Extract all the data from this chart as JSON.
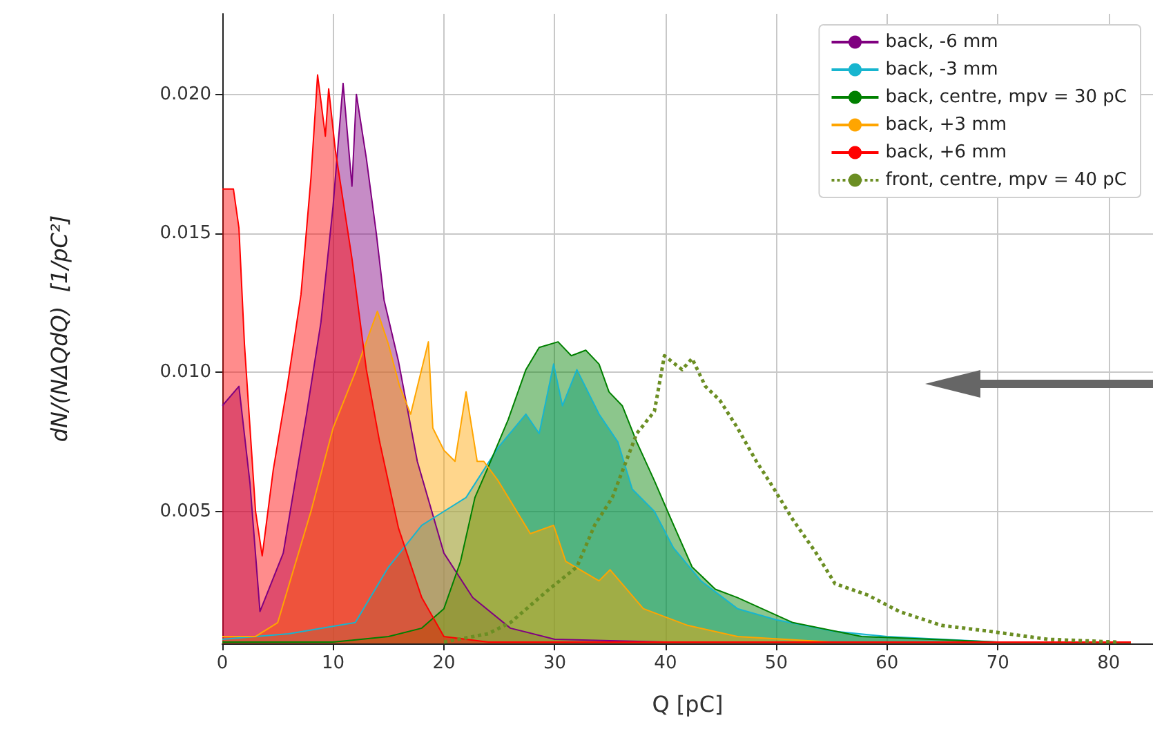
{
  "chart_data": {
    "type": "area",
    "xlabel": "Q [pC]",
    "ylabel": "dN/(NΔQdQ)  [1/pC²]",
    "xlim": [
      0,
      84
    ],
    "xticks": [
      0,
      10,
      20,
      30,
      40,
      50,
      60,
      70,
      80
    ],
    "ylim": [
      0.00025,
      0.0229
    ],
    "yticks": [
      {
        "value": 0.005,
        "label": "0.005"
      },
      {
        "value": 0.01,
        "label": "0.010"
      },
      {
        "value": 0.015,
        "label": "0.015"
      },
      {
        "value": 0.02,
        "label": "0.020"
      }
    ],
    "grid": true,
    "legend": "top right",
    "series": [
      {
        "name": "back, -6 mm",
        "color": "#800080",
        "x": [
          0,
          1.5,
          2.5,
          3.4,
          4.5,
          5.5,
          7.6,
          8.9,
          10,
          10.9,
          11.7,
          12.1,
          13,
          13.9,
          14.6,
          15.9,
          17.6,
          20,
          22.6,
          26,
          30,
          40,
          50,
          60,
          82
        ],
        "values": [
          0.0088,
          0.0095,
          0.006,
          0.0014,
          0.0025,
          0.0035,
          0.0085,
          0.0118,
          0.016,
          0.0204,
          0.0167,
          0.02,
          0.0177,
          0.015,
          0.0126,
          0.0104,
          0.0068,
          0.0035,
          0.0019,
          0.0008,
          0.0004,
          0.0003,
          0.0003,
          0.0003,
          0.0003
        ]
      },
      {
        "name": "back, -3 mm",
        "color": "#17b5cf",
        "x": [
          0,
          6,
          12,
          15,
          18,
          20,
          22,
          24.9,
          27.4,
          28.6,
          29.9,
          30.7,
          32,
          34,
          35.7,
          37,
          39,
          40.7,
          43.2,
          46.5,
          50,
          55,
          60,
          65,
          70,
          82
        ],
        "values": [
          0.0004,
          0.0006,
          0.001,
          0.003,
          0.0045,
          0.005,
          0.0055,
          0.0073,
          0.0085,
          0.0078,
          0.0103,
          0.0088,
          0.0101,
          0.0085,
          0.0075,
          0.0058,
          0.005,
          0.0037,
          0.0025,
          0.0015,
          0.0011,
          0.0007,
          0.0005,
          0.0004,
          0.0003,
          0.0003
        ]
      },
      {
        "name": "back, centre, mpv = 30 pC",
        "color": "#008000",
        "x": [
          0,
          10,
          15,
          18,
          20,
          21.5,
          22.8,
          24,
          25.8,
          27.4,
          28.6,
          30.3,
          31.5,
          32.8,
          34,
          34.9,
          36.1,
          37.4,
          39,
          40.3,
          42.4,
          44.5,
          46.5,
          51.5,
          57.7,
          64,
          70,
          82
        ],
        "values": [
          0.0003,
          0.0003,
          0.0005,
          0.0008,
          0.0015,
          0.0032,
          0.0055,
          0.0066,
          0.0083,
          0.0101,
          0.0109,
          0.0111,
          0.0106,
          0.0108,
          0.0103,
          0.0093,
          0.0088,
          0.0075,
          0.0061,
          0.0049,
          0.003,
          0.0022,
          0.0019,
          0.001,
          0.0005,
          0.0004,
          0.0003,
          0.0003
        ]
      },
      {
        "name": "back, +3 mm",
        "color": "#ffa500",
        "x": [
          0,
          3,
          5,
          8,
          10,
          12,
          14,
          15,
          16,
          17,
          18.6,
          19,
          20,
          21,
          22,
          23,
          23.6,
          24.9,
          27.8,
          29.9,
          31,
          34,
          35,
          38,
          42,
          46.5,
          55,
          82
        ],
        "values": [
          0.0005,
          0.0005,
          0.001,
          0.005,
          0.008,
          0.01,
          0.0122,
          0.011,
          0.0095,
          0.0085,
          0.0111,
          0.008,
          0.0072,
          0.0068,
          0.0093,
          0.0068,
          0.0068,
          0.0061,
          0.0042,
          0.0045,
          0.0032,
          0.0025,
          0.0029,
          0.0015,
          0.0009,
          0.0005,
          0.0003,
          0.0003
        ]
      },
      {
        "name": "back, +6 mm",
        "color": "#ff0000",
        "x": [
          0,
          1,
          1.5,
          2,
          3,
          3.6,
          4.6,
          5.9,
          7.1,
          8,
          8.6,
          9.3,
          9.6,
          10.2,
          11.7,
          13,
          14.2,
          15.9,
          18,
          20,
          24,
          30,
          40,
          50,
          60,
          70,
          82
        ],
        "values": [
          0.0166,
          0.0166,
          0.0152,
          0.011,
          0.005,
          0.0034,
          0.0065,
          0.0096,
          0.0128,
          0.017,
          0.0207,
          0.0185,
          0.0202,
          0.018,
          0.0141,
          0.0101,
          0.0075,
          0.0044,
          0.0019,
          0.0005,
          0.0003,
          0.0003,
          0.0003,
          0.0003,
          0.0003,
          0.0003,
          0.0003
        ]
      },
      {
        "name": "front, centre, mpv = 40 pC",
        "type": "line",
        "line_style": "dotted",
        "color": "#6b8e23",
        "x": [
          20,
          24,
          26,
          29.5,
          32,
          33.6,
          35.2,
          37.4,
          39,
          39.9,
          41.5,
          42.4,
          43.6,
          44.9,
          46.5,
          48.2,
          49.5,
          51.5,
          53.6,
          55.3,
          58.2,
          61.1,
          64.9,
          69,
          74.5,
          80.7
        ],
        "values": [
          0.0003,
          0.0006,
          0.001,
          0.0022,
          0.003,
          0.0045,
          0.0055,
          0.0078,
          0.0086,
          0.0106,
          0.0101,
          0.0105,
          0.0095,
          0.009,
          0.008,
          0.0068,
          0.006,
          0.0047,
          0.0035,
          0.0024,
          0.002,
          0.0014,
          0.0009,
          0.0007,
          0.0004,
          0.0003
        ]
      }
    ]
  }
}
